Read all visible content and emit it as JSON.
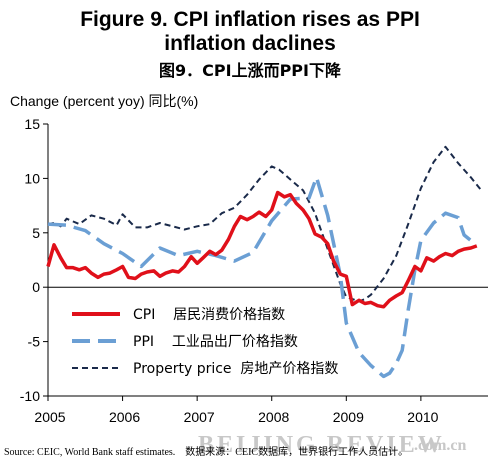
{
  "figure": {
    "title_line1": "Figure 9. CPI inflation rises as PPI",
    "title_line2": "inflation daclines",
    "title_cn": "图9．CPI上涨而PPI下降",
    "ylabel": "Change (percent yoy) 同比(%)",
    "source": "Source: CEIC, World Bank staff estimates.    数据来源：CEIC数据库，世界银行工作人员估计。",
    "watermark_main": "BEIJING REVIEW",
    "watermark_suffix": ".com.cn"
  },
  "chart_data": {
    "type": "line",
    "title": "Figure 9. CPI inflation rises as PPI inflation daclines",
    "ylabel": "Change (percent yoy) 同比(%)",
    "xlabel": "",
    "xlim": [
      2005,
      2010.9
    ],
    "ylim": [
      -10,
      15
    ],
    "yticks": [
      -10,
      -5,
      0,
      5,
      10,
      15
    ],
    "xticks": [
      2005,
      2006,
      2007,
      2008,
      2009,
      2010
    ],
    "xtick_labels": [
      "2005",
      "2006",
      "2007",
      "2008",
      "2009",
      "2010"
    ],
    "grid": false,
    "legend_position": "lower-left",
    "series": [
      {
        "name": "CPI 居民消费价格指数",
        "color": "#e0101a",
        "style": "solid",
        "x": [
          2005.0,
          2005.08,
          2005.17,
          2005.25,
          2005.33,
          2005.42,
          2005.5,
          2005.58,
          2005.67,
          2005.75,
          2005.83,
          2005.92,
          2006.0,
          2006.08,
          2006.17,
          2006.25,
          2006.33,
          2006.42,
          2006.5,
          2006.58,
          2006.67,
          2006.75,
          2006.83,
          2006.92,
          2007.0,
          2007.08,
          2007.17,
          2007.25,
          2007.33,
          2007.42,
          2007.5,
          2007.58,
          2007.67,
          2007.75,
          2007.83,
          2007.92,
          2008.0,
          2008.08,
          2008.17,
          2008.25,
          2008.33,
          2008.42,
          2008.5,
          2008.58,
          2008.67,
          2008.75,
          2008.83,
          2008.92,
          2009.0,
          2009.08,
          2009.17,
          2009.25,
          2009.33,
          2009.42,
          2009.5,
          2009.58,
          2009.67,
          2009.75,
          2009.83,
          2009.92,
          2010.0,
          2010.08,
          2010.17,
          2010.25,
          2010.33,
          2010.42,
          2010.5,
          2010.58,
          2010.67,
          2010.75
        ],
        "values": [
          1.9,
          3.9,
          2.7,
          1.8,
          1.8,
          1.6,
          1.8,
          1.3,
          0.9,
          1.2,
          1.3,
          1.6,
          1.9,
          0.9,
          0.8,
          1.2,
          1.4,
          1.5,
          1.0,
          1.3,
          1.5,
          1.4,
          1.9,
          2.8,
          2.2,
          2.7,
          3.3,
          3.0,
          3.4,
          4.4,
          5.6,
          6.5,
          6.2,
          6.5,
          6.9,
          6.5,
          7.1,
          8.7,
          8.3,
          8.5,
          7.7,
          7.1,
          6.3,
          4.9,
          4.6,
          4.0,
          2.4,
          1.2,
          1.0,
          -1.6,
          -1.2,
          -1.5,
          -1.4,
          -1.7,
          -1.8,
          -1.2,
          -0.8,
          -0.5,
          0.6,
          1.9,
          1.5,
          2.7,
          2.4,
          2.8,
          3.1,
          2.9,
          3.3,
          3.5,
          3.6,
          3.8
        ]
      },
      {
        "name": "PPI 工业品出厂价格指数",
        "color": "#6b9fd4",
        "style": "dashed-long",
        "x": [
          2005.0,
          2005.25,
          2005.5,
          2005.75,
          2006.0,
          2006.25,
          2006.5,
          2006.75,
          2007.0,
          2007.25,
          2007.5,
          2007.75,
          2008.0,
          2008.25,
          2008.5,
          2008.6,
          2008.75,
          2008.92,
          2009.0,
          2009.17,
          2009.33,
          2009.5,
          2009.58,
          2009.67,
          2009.75,
          2009.83,
          2009.92,
          2010.0,
          2010.17,
          2010.33,
          2010.5,
          2010.58,
          2010.67,
          2010.75
        ],
        "values": [
          5.8,
          5.7,
          5.2,
          4.0,
          3.1,
          1.9,
          3.6,
          2.9,
          3.3,
          2.9,
          2.4,
          3.2,
          6.1,
          8.1,
          8.2,
          10.1,
          6.6,
          1.1,
          -3.3,
          -6.0,
          -7.2,
          -8.2,
          -7.9,
          -7.0,
          -5.8,
          -2.1,
          1.6,
          4.3,
          5.9,
          6.8,
          6.4,
          4.8,
          4.3,
          4.6
        ]
      },
      {
        "name": "Property price 房地产价格指数",
        "color": "#1a2a4a",
        "style": "dashed-short",
        "x": [
          2005.0,
          2005.08,
          2005.17,
          2005.25,
          2005.42,
          2005.58,
          2005.75,
          2005.92,
          2006.0,
          2006.17,
          2006.33,
          2006.5,
          2006.67,
          2006.83,
          2007.0,
          2007.17,
          2007.33,
          2007.5,
          2007.67,
          2007.83,
          2008.0,
          2008.1,
          2008.25,
          2008.42,
          2008.58,
          2008.75,
          2008.92,
          2009.0,
          2009.17,
          2009.25,
          2009.33,
          2009.5,
          2009.67,
          2009.83,
          2010.0,
          2010.17,
          2010.33,
          2010.5,
          2010.67,
          2010.8
        ],
        "values": [
          5.8,
          5.9,
          5.6,
          6.3,
          5.8,
          6.6,
          6.3,
          5.7,
          6.7,
          5.5,
          5.5,
          5.9,
          5.6,
          5.3,
          5.6,
          5.8,
          6.8,
          7.3,
          8.5,
          9.9,
          11.1,
          10.8,
          9.9,
          8.9,
          6.8,
          3.5,
          0.3,
          -0.9,
          -1.3,
          -1.1,
          -0.7,
          0.8,
          2.9,
          5.8,
          9.1,
          11.5,
          12.9,
          11.4,
          10.1,
          9.0
        ]
      }
    ]
  },
  "legend": {
    "items": [
      {
        "label": "CPI    居民消费价格指数"
      },
      {
        "label": "PPI    工业品出厂价格指数"
      },
      {
        "label": "Property price  房地产价格指数"
      }
    ]
  }
}
